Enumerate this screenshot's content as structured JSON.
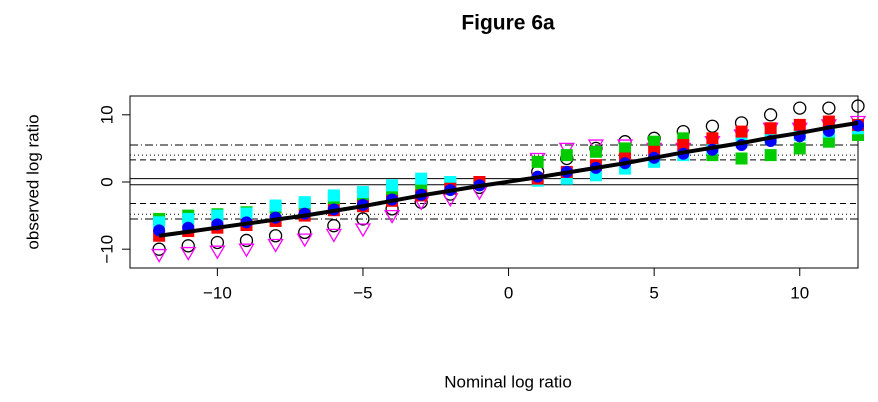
{
  "chart_data": {
    "type": "scatter",
    "title": "Figure 6a",
    "xlabel": "Nominal log ratio",
    "ylabel": "observed log ratio",
    "x": [
      -12,
      -11,
      -10,
      -9,
      -8,
      -7,
      -6,
      -5,
      -4,
      -3,
      -2,
      -1,
      1,
      2,
      3,
      4,
      5,
      6,
      7,
      8,
      9,
      10,
      11,
      12
    ],
    "xlim": [
      -13,
      12
    ],
    "ylim": [
      -12.8,
      12.8
    ],
    "xticks": [
      {
        "value": -10,
        "label": "−10"
      },
      {
        "value": -5,
        "label": "−5"
      },
      0,
      5,
      10
    ],
    "yticks": [
      {
        "value": -10,
        "label": "−10"
      },
      0,
      10
    ],
    "reference_lines": [
      {
        "value": 0.5,
        "dash": "solid"
      },
      {
        "value": -0.4,
        "dash": "solid"
      },
      {
        "value": 3.3,
        "dash": "dashed"
      },
      {
        "value": -3.2,
        "dash": "dashed"
      },
      {
        "value": 4.0,
        "dash": "dotted"
      },
      {
        "value": -4.8,
        "dash": "dotted"
      },
      {
        "value": 5.5,
        "dash": "dashdot"
      },
      {
        "value": -5.5,
        "dash": "dashdot"
      }
    ],
    "series": [
      {
        "color": "#000000",
        "shape": "circle-open",
        "values": [
          -10,
          -9.5,
          -9,
          -8.7,
          -8,
          -7.5,
          -6.5,
          -5.5,
          -4,
          -3,
          -1.8,
          -0.8,
          1.5,
          3.5,
          5,
          6,
          6.5,
          7.5,
          8.3,
          8.8,
          10,
          11,
          11,
          11.3
        ]
      },
      {
        "color": "#ff00ff",
        "shape": "triangle-down",
        "values": [
          -10.8,
          -10.5,
          -10.3,
          -10,
          -9.3,
          -8.5,
          -7.8,
          -7,
          -5,
          -3,
          -2.5,
          -1.5,
          3.5,
          5,
          5.5,
          5.5,
          5,
          5,
          6,
          7,
          8,
          8,
          8.5,
          9
        ]
      },
      {
        "color": "#00cc00",
        "shape": "square",
        "values": [
          -5.5,
          -5,
          -4.8,
          -4.5,
          -3.8,
          -3.2,
          -2.5,
          -2,
          -1.5,
          -1,
          -0.5,
          0,
          3,
          4,
          4.5,
          5,
          6,
          6.5,
          4,
          3.5,
          4,
          5,
          6,
          7
        ]
      },
      {
        "color": "#00ffff",
        "shape": "square",
        "values": [
          -6,
          -5.5,
          -5,
          -4.7,
          -3.5,
          -3,
          -2,
          -1.5,
          -0.5,
          0.5,
          0,
          0,
          0.2,
          0.5,
          1,
          2,
          3,
          4,
          5,
          6,
          6.5,
          7,
          7.5,
          8
        ]
      },
      {
        "color": "#ff0000",
        "shape": "square",
        "values": [
          -8,
          -7.3,
          -6.8,
          -6.4,
          -5.8,
          -5,
          -4.2,
          -3.6,
          -2.8,
          -2,
          -1,
          0,
          0.5,
          1.5,
          2.5,
          3.5,
          4.5,
          5.5,
          6.5,
          7.5,
          8,
          8.5,
          9,
          8.5
        ]
      },
      {
        "color": "#0000ff",
        "shape": "circle",
        "values": [
          -7.2,
          -6.8,
          -6.3,
          -6,
          -5.3,
          -4.7,
          -4.1,
          -3.4,
          -2.6,
          -1.9,
          -1.2,
          -0.5,
          0.8,
          1.5,
          2.1,
          2.8,
          3.6,
          4.2,
          4.8,
          5.5,
          6.1,
          6.8,
          7.6,
          8.4
        ]
      },
      {
        "color": "#000000",
        "shape": "line",
        "values": [
          -8,
          -7.4,
          -6.8,
          -6.2,
          -5.6,
          -5,
          -4.3,
          -3.6,
          -2.8,
          -2,
          -1.3,
          -0.6,
          0.7,
          1.4,
          2.1,
          2.8,
          3.6,
          4.4,
          5.1,
          5.8,
          6.6,
          7.3,
          8.1,
          8.8
        ]
      }
    ]
  }
}
